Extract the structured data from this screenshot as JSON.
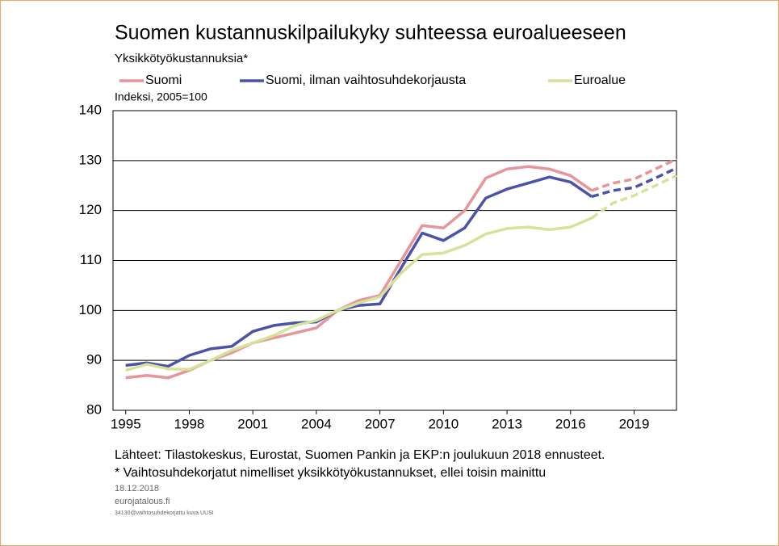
{
  "chart_data": {
    "type": "line",
    "title": "Suomen kustannuskilpailukyky suhteessa euroalueeseen",
    "subtitle": "Yksikkötyökustannuksia*",
    "y_axis_label": "Indeksi, 2005=100",
    "x": [
      1995,
      1996,
      1997,
      1998,
      1999,
      2000,
      2001,
      2002,
      2003,
      2004,
      2005,
      2006,
      2007,
      2008,
      2009,
      2010,
      2011,
      2012,
      2013,
      2014,
      2015,
      2016,
      2017,
      2018,
      2019,
      2020,
      2021
    ],
    "series": [
      {
        "name": "Suomi",
        "color": "#e6959a",
        "values": [
          86.5,
          87,
          86.5,
          88,
          90,
          91.5,
          93.5,
          94.5,
          95.5,
          96.5,
          100,
          102,
          103,
          110,
          117,
          116.5,
          120,
          126.5,
          128.3,
          128.8,
          128.3,
          127,
          124,
          125.5,
          126.3,
          128.3,
          130.3
        ]
      },
      {
        "name": "Suomi, ilman vaihtosuhdekorjausta",
        "color": "#4b52a8",
        "values": [
          89,
          89.5,
          88.8,
          91,
          92.3,
          92.8,
          95.8,
          97,
          97.5,
          97.7,
          100,
          101,
          101.3,
          108.5,
          115.5,
          114,
          116.5,
          122.5,
          124.3,
          125.5,
          126.7,
          125.7,
          122.8,
          124,
          124.6,
          126.5,
          128.5
        ]
      },
      {
        "name": "Euroalue",
        "color": "#d5e39a",
        "values": [
          88,
          89.2,
          88.3,
          88.2,
          90,
          92,
          93.5,
          95,
          97,
          98,
          100,
          101.5,
          102.7,
          107.5,
          111.2,
          111.5,
          113,
          115.3,
          116.4,
          116.7,
          116.2,
          116.7,
          118.5,
          121.5,
          123,
          125,
          127
        ]
      }
    ],
    "dashed_from": 2017,
    "xlim": [
      1994.4,
      2021
    ],
    "xticks": [
      1995,
      1998,
      2001,
      2004,
      2007,
      2010,
      2013,
      2016,
      2019
    ],
    "ylim": [
      80,
      140
    ],
    "yticks": [
      80,
      90,
      100,
      110,
      120,
      130,
      140
    ],
    "grid": true,
    "notes": [
      "Lähteet: Tilastokeskus, Eurostat, Suomen Pankin ja EKP:n joulukuun 2018 ennusteet.",
      "* Vaihtosuhdekorjatut nimelliset yksikkötyökustannukset, ellei toisin mainittu"
    ],
    "date": "18.12.2018",
    "site": "eurojatalous.fi",
    "file_id": "34130@vaihtosuhdekorjattu kuva UUSI"
  }
}
